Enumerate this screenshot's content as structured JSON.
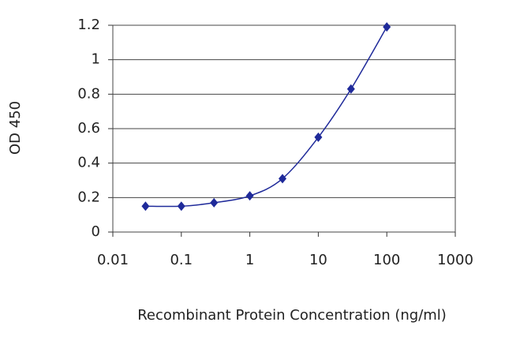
{
  "chart_data": {
    "type": "line",
    "xlabel": "Recombinant Protein Concentration (ng/ml)",
    "ylabel": "OD 450",
    "x": [
      0.03,
      0.1,
      0.3,
      1,
      3,
      10,
      30,
      100
    ],
    "series": [
      {
        "color": "#1f2a9a",
        "values": [
          0.15,
          0.15,
          0.17,
          0.21,
          0.31,
          0.55,
          0.83,
          1.19
        ]
      }
    ],
    "xscale": "log",
    "xlim": [
      0.01,
      1000
    ],
    "xticks": [
      0.01,
      0.1,
      1,
      10,
      100,
      1000
    ],
    "ylim": [
      0,
      1.2
    ],
    "yticks": [
      0,
      0.2,
      0.4,
      0.6,
      0.8,
      1,
      1.2
    ],
    "grid": true
  }
}
